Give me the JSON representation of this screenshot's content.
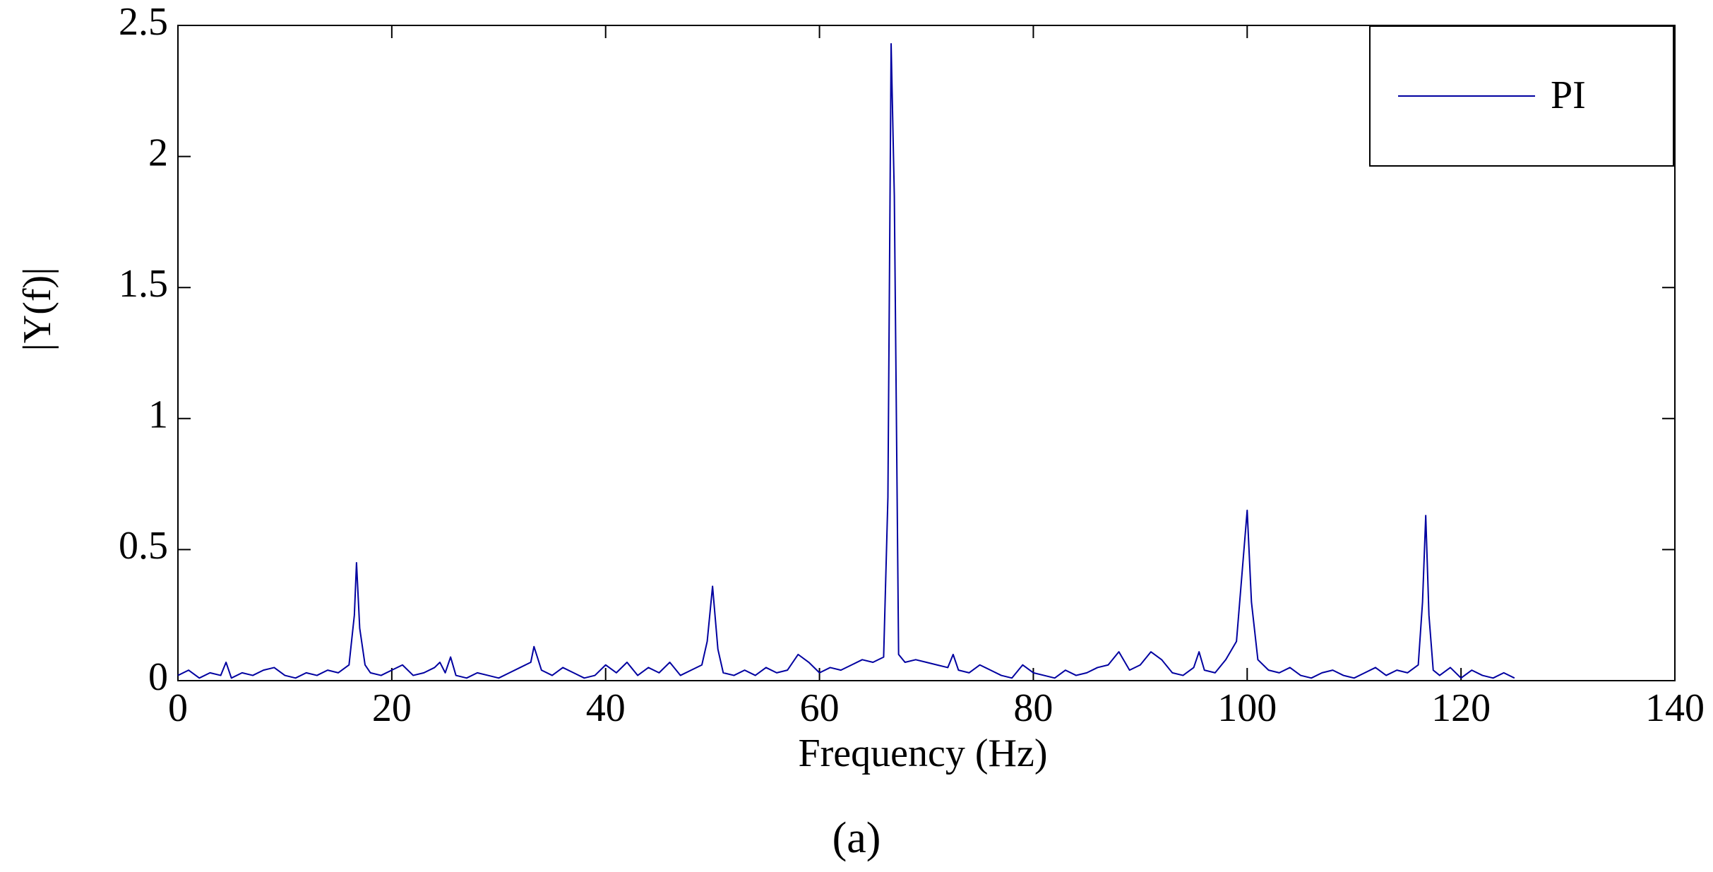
{
  "chart_data": {
    "type": "line",
    "xlabel": "Frequency (Hz)",
    "ylabel": "|Y(f)|",
    "caption": "(a)",
    "x": [
      0,
      1,
      2,
      3,
      4,
      4.5,
      5,
      6,
      7,
      8,
      9,
      10,
      11,
      12,
      13,
      14,
      15,
      16,
      16.5,
      16.7,
      17,
      17.5,
      18,
      19,
      20,
      21,
      22,
      23,
      24,
      24.5,
      25,
      25.5,
      26,
      27,
      28,
      29,
      30,
      31,
      32,
      33,
      33.3,
      34,
      35,
      36,
      37,
      38,
      39,
      40,
      41,
      42,
      43,
      44,
      45,
      46,
      47,
      48,
      49,
      49.5,
      50,
      50.5,
      51,
      52,
      53,
      54,
      55,
      56,
      57,
      58,
      59,
      60,
      61,
      62,
      63,
      64,
      65,
      66,
      66.4,
      66.7,
      67,
      67.4,
      68,
      69,
      70,
      71,
      72,
      72.5,
      73,
      74,
      75,
      76,
      77,
      78,
      79,
      80,
      81,
      82,
      83,
      84,
      85,
      86,
      87,
      88,
      89,
      90,
      91,
      92,
      93,
      94,
      95,
      95.5,
      96,
      97,
      98,
      99,
      99.6,
      100,
      100.4,
      101,
      102,
      103,
      104,
      105,
      106,
      107,
      108,
      109,
      110,
      111,
      112,
      113,
      114,
      115,
      116,
      116.4,
      116.7,
      117,
      117.4,
      118,
      119,
      120,
      121,
      122,
      123,
      124,
      125
    ],
    "series": [
      {
        "name": "PI",
        "color": "#0000a0",
        "values": [
          0.02,
          0.04,
          0.01,
          0.03,
          0.02,
          0.07,
          0.01,
          0.03,
          0.02,
          0.04,
          0.05,
          0.02,
          0.01,
          0.03,
          0.02,
          0.04,
          0.03,
          0.06,
          0.25,
          0.45,
          0.2,
          0.06,
          0.03,
          0.02,
          0.04,
          0.06,
          0.02,
          0.03,
          0.05,
          0.07,
          0.03,
          0.09,
          0.02,
          0.01,
          0.03,
          0.02,
          0.01,
          0.03,
          0.05,
          0.07,
          0.13,
          0.04,
          0.02,
          0.05,
          0.03,
          0.01,
          0.02,
          0.06,
          0.03,
          0.07,
          0.02,
          0.05,
          0.03,
          0.07,
          0.02,
          0.04,
          0.06,
          0.15,
          0.36,
          0.12,
          0.03,
          0.02,
          0.04,
          0.02,
          0.05,
          0.03,
          0.04,
          0.1,
          0.07,
          0.03,
          0.05,
          0.04,
          0.06,
          0.08,
          0.07,
          0.09,
          0.7,
          2.43,
          1.85,
          0.1,
          0.07,
          0.08,
          0.07,
          0.06,
          0.05,
          0.1,
          0.04,
          0.03,
          0.06,
          0.04,
          0.02,
          0.01,
          0.06,
          0.03,
          0.02,
          0.01,
          0.04,
          0.02,
          0.03,
          0.05,
          0.06,
          0.11,
          0.04,
          0.06,
          0.11,
          0.08,
          0.03,
          0.02,
          0.05,
          0.11,
          0.04,
          0.03,
          0.08,
          0.15,
          0.45,
          0.65,
          0.3,
          0.08,
          0.04,
          0.03,
          0.05,
          0.02,
          0.01,
          0.03,
          0.04,
          0.02,
          0.01,
          0.03,
          0.05,
          0.02,
          0.04,
          0.03,
          0.06,
          0.3,
          0.63,
          0.25,
          0.04,
          0.02,
          0.05,
          0.01,
          0.04,
          0.02,
          0.01,
          0.03,
          0.01
        ]
      }
    ],
    "xlim": [
      0,
      140
    ],
    "xticks": [
      0,
      20,
      40,
      60,
      80,
      100,
      120,
      140
    ],
    "ylim": [
      0,
      2.5
    ],
    "yticks": [
      0,
      0.5,
      1,
      1.5,
      2,
      2.5
    ],
    "legend": "upper right"
  }
}
